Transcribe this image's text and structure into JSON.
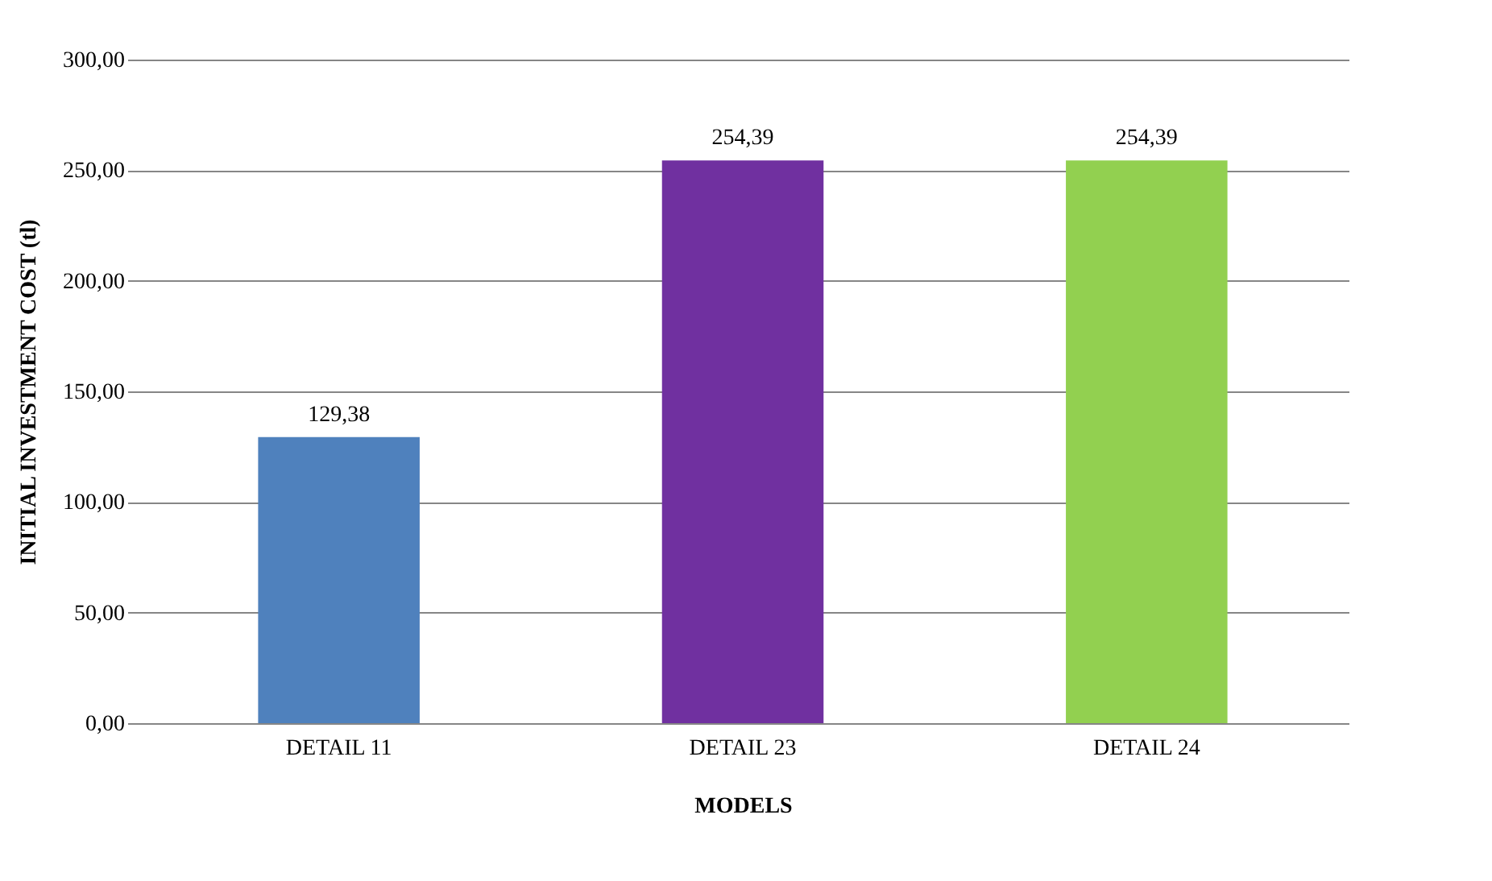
{
  "chart_data": {
    "type": "bar",
    "xlabel": "MODELS",
    "ylabel": "INITIAL  INVESTMENT  COST (tl)",
    "categories": [
      "DETAIL 11",
      "DETAIL 23",
      "DETAIL 24"
    ],
    "values": [
      129.38,
      254.39,
      254.39
    ],
    "colors": [
      "#4f81bd",
      "#7030a0",
      "#92d050"
    ],
    "value_labels": [
      "129,38",
      "254,39",
      "254,39"
    ],
    "ylim": [
      0,
      300
    ],
    "yticks": [
      {
        "value": 0,
        "label": "0,00"
      },
      {
        "value": 50,
        "label": "50,00"
      },
      {
        "value": 100,
        "label": "100,00"
      },
      {
        "value": 150,
        "label": "150,00"
      },
      {
        "value": 200,
        "label": "200,00"
      },
      {
        "value": 250,
        "label": "250,00"
      },
      {
        "value": 300,
        "label": "300,00"
      }
    ],
    "grid": "y"
  }
}
